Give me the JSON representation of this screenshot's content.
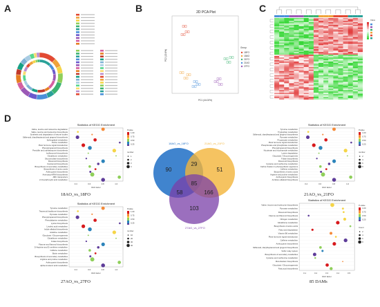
{
  "panels": {
    "A": "A",
    "B": "B",
    "C": "C",
    "D": "D"
  },
  "panelB": {
    "title": "2D PCA Plot",
    "xlabel": "PC1 (44.02%)",
    "ylabel": "PC2 (22.6%)",
    "legend_title": "Group",
    "groups": [
      "18FO",
      "18AO",
      "21FO",
      "21AO",
      "27FO"
    ],
    "group_colors": [
      "#e24a33",
      "#f0a33a",
      "#3cb371",
      "#4a90d9",
      "#9b59b6"
    ]
  },
  "panelC": {
    "legend_title": "Class"
  },
  "venn": {
    "sets": [
      "18AO_vs_18FO",
      "21AO_vs_21FO",
      "27AO_vs_27FO"
    ],
    "set_colors": [
      "#1f6fc5",
      "#f2b43a",
      "#7a3fa8"
    ],
    "regions": {
      "only_a": "90",
      "a_b": "29",
      "only_b": "51",
      "a_c": "58",
      "center": "85",
      "b_c": "166",
      "only_c": "103"
    }
  },
  "captions": {
    "d1": "18AO_vs_18FO",
    "d2": "21AO_vs_21FO",
    "d3": "27AO_vs_27FO",
    "d4": "85 DAMs"
  },
  "kegg_plots": [
    {
      "title": "Statistics of KEGG Enrichment",
      "xlabel": "Rich factor",
      "legend_p": "Pvalue",
      "legend_n": "number",
      "terms": [
        "Valine, leucine and isoleucine degradation",
        "Valine, leucine and isoleucine biosynthesis",
        "Synthesis and degradation of ketone bodies",
        "Stilbenoid, diarylheptanoid and gingerol biosynthesis",
        "Sphingolipid metabolism",
        "Purine metabolism",
        "Plant hormone signal transduction",
        "Phenylpropanoid biosynthesis",
        "Penicillin and cephalosporin biosynthesis",
        "Isoflavonoid biosynthesis",
        "Glutathione metabolism",
        "Glucosinolate biosynthesis",
        "Flavonoid biosynthesis",
        "Carotenoid biosynthesis",
        "Biosynthesis of secondary metabolites",
        "Biosynthesis of amino acids",
        "Anthocyanin biosynthesis",
        "Aminoacyl-tRNA biosynthesis",
        "ABC transporters",
        "2-Oxocarboxylic acid metabolism"
      ],
      "ticks": [
        "0.4",
        "0.6",
        "0.8",
        "1.0"
      ],
      "legend_p_ticks": [
        "1.00",
        "0.75",
        "0.50",
        "0.25"
      ],
      "legend_n_ticks": [
        "1",
        "2",
        "3",
        "4"
      ]
    },
    {
      "title": "Statistics of KEGG Enrichment",
      "xlabel": "Rich factor",
      "legend_p": "Pvalue",
      "legend_n": "number",
      "terms": [
        "Tyrosine metabolism",
        "Tryptophan metabolism",
        "Stilbenoid, diarylheptanoid and gingerol biosynthesis",
        "Pyruvate metabolism",
        "Propanoate metabolism",
        "Plant hormone signal transduction",
        "Phosphonate and phosphinate metabolism",
        "Phenylpropanoid biosynthesis",
        "Nicotinate and nicotinamide metabolism",
        "Lysine degradation",
        "Glycolysis / Gluconeogenesis",
        "Folate biosynthesis",
        "Flavonoid biosynthesis",
        "Cysteine and methionine metabolism",
        "Carbon fixation in photosynthetic organisms",
        "Caffeine metabolism",
        "Biosynthesis of amino acids",
        "Arginine and proline metabolism",
        "Anthocyanin biosynthesis",
        "Acridone alkaloid biosynthesis"
      ],
      "ticks": [
        "0.4",
        "0.6",
        "0.8",
        "1.0"
      ],
      "legend_p_ticks": [
        "1.00",
        "0.75",
        "0.50",
        "0.25"
      ],
      "legend_n_ticks": [
        "2",
        "4",
        "6",
        "8"
      ]
    },
    {
      "title": "Statistics of KEGG Enrichment",
      "xlabel": "Rich factor",
      "legend_p": "Pvalue",
      "legend_n": "number",
      "terms": [
        "Tyrosine metabolism",
        "Terpenoid backbone biosynthesis",
        "Pyruvate metabolism",
        "Phenylpropanoid biosynthesis",
        "Phenylalanine metabolism",
        "Lysine biosynthesis",
        "Linoleic acid metabolism",
        "Indole alkaloid biosynthesis",
        "Histidine metabolism",
        "Glycolysis / Gluconeogenesis",
        "Glutathione metabolism",
        "Folate biosynthesis",
        "Flavone and flavonol biosynthesis",
        "D-Arginine and D-ornithine metabolism",
        "Caffeine metabolism",
        "Biotin metabolism",
        "Biosynthesis of secondary metabolites",
        "Arginine and proline metabolism",
        "Anthocyanin biosynthesis",
        "alpha-Linolenic acid metabolism"
      ],
      "ticks": [
        "0.4",
        "0.6",
        "0.8",
        "1.0"
      ],
      "legend_p_ticks": [
        "1.00",
        "0.75",
        "0.50",
        "0.25"
      ],
      "legend_n_ticks": [
        "10",
        "20",
        "30",
        "40"
      ]
    },
    {
      "title": "Statistics of KEGG Enrichment",
      "xlabel": "Rich factor",
      "legend_p": "P-value",
      "legend_n": "Count",
      "terms": [
        "Valine, leucine and isoleucine biosynthesis",
        "Pyruvate metabolism",
        "Flavonoid biosynthesis",
        "Flavone and flavonol biosynthesis",
        "Nitrogen metabolism",
        "Glutathione metabolism",
        "Biosynthesis of amino acids",
        "Fatty acid degradation",
        "Vitamin B6 metabolism",
        "Plant hormone signal transduction",
        "Caffeine metabolism",
        "Anthocyanin biosynthesis",
        "Stilbenoid, diarylheptanoid and gingerol biosynthesis",
        "Sulfur relay system",
        "Biosynthesis of secondary metabolites",
        "Cysteine and methionine metabolism",
        "Monobactam biosynthesis",
        "Glycolysis / Gluconeogenesis",
        "Fatty acid biosynthesis"
      ],
      "ticks": [
        "0.1",
        "0.2",
        "0.3",
        "0.4",
        "0.5"
      ],
      "legend_p_ticks": [
        "1.00",
        "0.75",
        "0.50",
        "0.25"
      ],
      "legend_n_ticks": [
        "2",
        "4",
        "6",
        "8"
      ]
    }
  ]
}
